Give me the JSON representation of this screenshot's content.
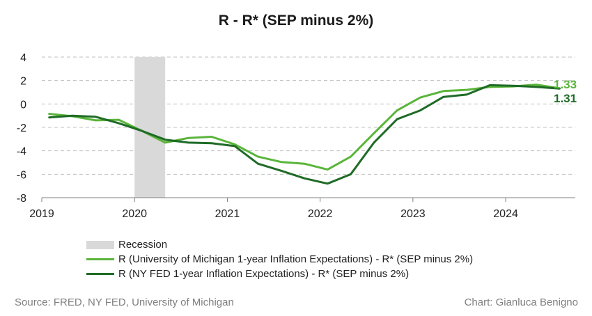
{
  "title": "R - R* (SEP minus 2%)",
  "colors": {
    "umich": "#5ab53a",
    "nyfed": "#1f6b27",
    "recession": "#d9d9d9",
    "grid": "#bfbfbf"
  },
  "chart_data": {
    "type": "line",
    "title": "R - R* (SEP minus 2%)",
    "xlabel": "",
    "ylabel": "",
    "xlim": [
      2019.0,
      2024.75
    ],
    "ylim": [
      -8,
      4
    ],
    "x_ticks": [
      2019,
      2020,
      2021,
      2022,
      2023,
      2024
    ],
    "y_ticks": [
      4,
      2,
      0,
      -2,
      -4,
      -6,
      -8
    ],
    "grid": true,
    "legend_position": "bottom-left",
    "recession": {
      "name": "Recession",
      "start": 2020.0,
      "end": 2020.33
    },
    "series": [
      {
        "name": "R (University of Michigan 1-year Inflation Expectations) - R* (SEP minus 2%)",
        "color": "#5ab53a",
        "end_label": "1.33",
        "x": [
          2019.08,
          2019.33,
          2019.58,
          2019.83,
          2020.08,
          2020.33,
          2020.58,
          2020.83,
          2021.08,
          2021.33,
          2021.58,
          2021.83,
          2022.08,
          2022.33,
          2022.58,
          2022.83,
          2023.08,
          2023.33,
          2023.58,
          2023.83,
          2024.08,
          2024.33,
          2024.58
        ],
        "values": [
          -0.85,
          -1.05,
          -1.4,
          -1.35,
          -2.3,
          -3.3,
          -2.9,
          -2.8,
          -3.45,
          -4.5,
          -4.95,
          -5.1,
          -5.6,
          -4.5,
          -2.5,
          -0.55,
          0.55,
          1.1,
          1.2,
          1.45,
          1.5,
          1.65,
          1.33
        ]
      },
      {
        "name": "R (NY FED 1-year Inflation Expectations) - R* (SEP minus 2%)",
        "color": "#1f6b27",
        "end_label": "1.31",
        "x": [
          2019.08,
          2019.33,
          2019.58,
          2019.83,
          2020.08,
          2020.33,
          2020.58,
          2020.83,
          2021.08,
          2021.33,
          2021.58,
          2021.83,
          2022.08,
          2022.33,
          2022.58,
          2022.83,
          2023.08,
          2023.33,
          2023.58,
          2023.83,
          2024.08,
          2024.33,
          2024.58
        ],
        "values": [
          -1.15,
          -1.0,
          -1.1,
          -1.65,
          -2.3,
          -3.05,
          -3.3,
          -3.35,
          -3.6,
          -5.1,
          -5.7,
          -6.35,
          -6.8,
          -6.0,
          -3.3,
          -1.3,
          -0.55,
          0.6,
          0.8,
          1.6,
          1.55,
          1.45,
          1.31
        ]
      }
    ]
  },
  "legend": {
    "recession_label": "Recession",
    "umich_label": "R (University of Michigan 1-year Inflation Expectations) - R* (SEP minus 2%)",
    "nyfed_label": "R (NY FED 1-year Inflation Expectations) - R* (SEP minus 2%)"
  },
  "footer": {
    "source": "Source: FRED, NY FED, University of Michigan",
    "credit": "Chart: Gianluca Benigno"
  }
}
